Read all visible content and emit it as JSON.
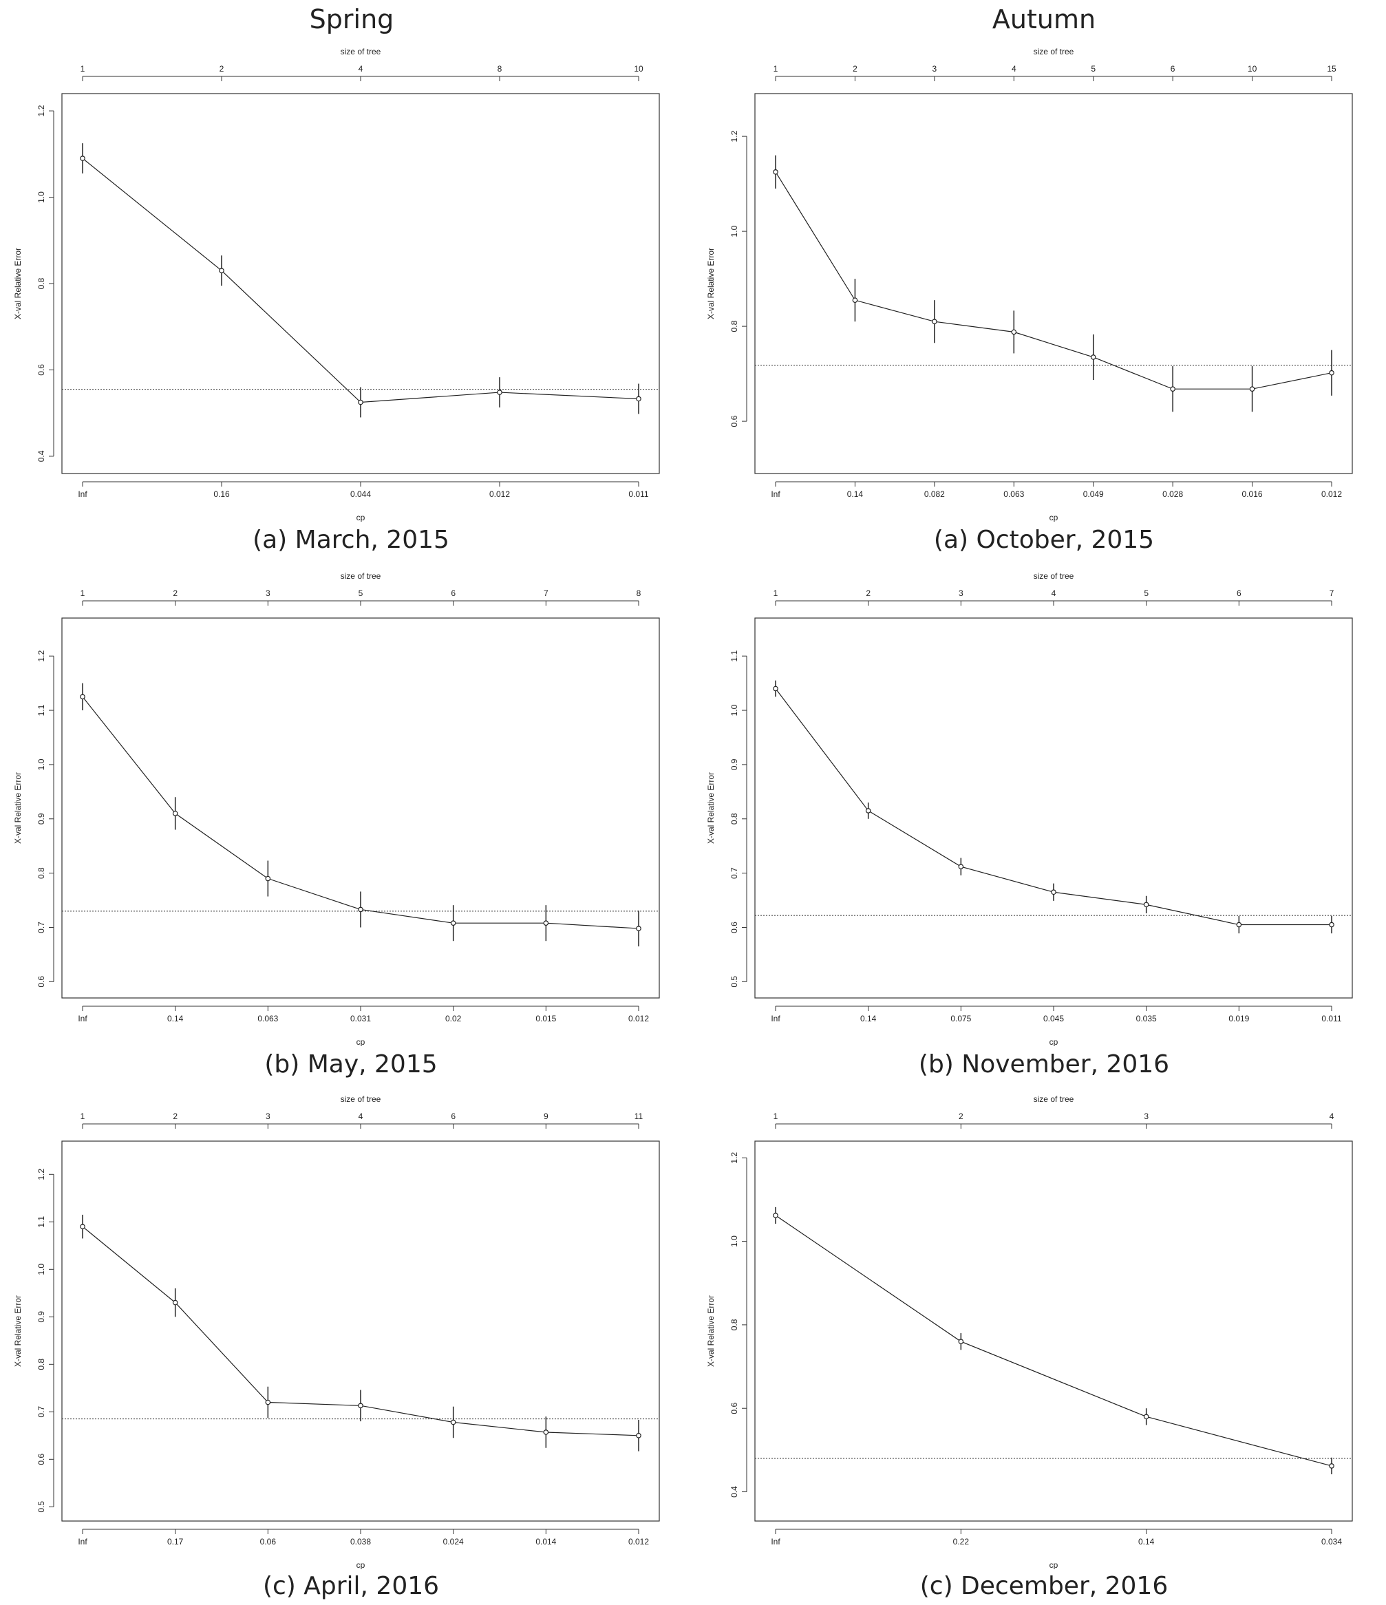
{
  "columns": [
    "Spring",
    "Autumn"
  ],
  "axis_labels": {
    "top": "size of tree",
    "bottom": "cp",
    "left": "X-val Relative Error"
  },
  "chart_data": [
    {
      "type": "line",
      "caption": "(a) March, 2015",
      "column": "Spring",
      "xlabel": "cp",
      "ylabel": "X-val Relative Error",
      "top_label": "size of tree",
      "cp_ticks": [
        "Inf",
        "0.16",
        "0.044",
        "0.012",
        "0.011"
      ],
      "size_ticks": [
        "1",
        "2",
        "4",
        "8",
        "10"
      ],
      "y_ticks": [
        0.4,
        0.6,
        0.8,
        1.0,
        1.2
      ],
      "ylim": [
        0.36,
        1.24
      ],
      "values": [
        1.09,
        0.83,
        0.525,
        0.548,
        0.533
      ],
      "error": [
        0.035,
        0.035,
        0.035,
        0.035,
        0.035
      ],
      "hline": 0.555
    },
    {
      "type": "line",
      "caption": "(a) October, 2015",
      "column": "Autumn",
      "xlabel": "cp",
      "ylabel": "X-val Relative Error",
      "top_label": "size of tree",
      "cp_ticks": [
        "Inf",
        "0.14",
        "0.082",
        "0.063",
        "0.049",
        "0.028",
        "0.016",
        "0.012"
      ],
      "size_ticks": [
        "1",
        "2",
        "3",
        "4",
        "5",
        "6",
        "10",
        "15"
      ],
      "y_ticks": [
        0.6,
        0.8,
        1.0,
        1.2
      ],
      "ylim": [
        0.49,
        1.29
      ],
      "values": [
        1.125,
        0.855,
        0.81,
        0.788,
        0.735,
        0.668,
        0.668,
        0.702
      ],
      "error": [
        0.035,
        0.045,
        0.045,
        0.045,
        0.048,
        0.048,
        0.048,
        0.048
      ],
      "hline": 0.718
    },
    {
      "type": "line",
      "caption": "(b) May, 2015",
      "column": "Spring",
      "xlabel": "cp",
      "ylabel": "X-val Relative Error",
      "top_label": "size of tree",
      "cp_ticks": [
        "Inf",
        "0.14",
        "0.063",
        "0.031",
        "0.02",
        "0.015",
        "0.012"
      ],
      "size_ticks": [
        "1",
        "2",
        "3",
        "5",
        "6",
        "7",
        "8"
      ],
      "y_ticks": [
        0.6,
        0.7,
        0.8,
        0.9,
        1.0,
        1.1,
        1.2
      ],
      "ylim": [
        0.57,
        1.27
      ],
      "values": [
        1.125,
        0.91,
        0.79,
        0.733,
        0.708,
        0.708,
        0.698
      ],
      "error": [
        0.025,
        0.03,
        0.033,
        0.033,
        0.033,
        0.033,
        0.033
      ],
      "hline": 0.73
    },
    {
      "type": "line",
      "caption": "(b) November, 2016",
      "column": "Autumn",
      "xlabel": "cp",
      "ylabel": "X-val Relative Error",
      "top_label": "size of tree",
      "cp_ticks": [
        "Inf",
        "0.14",
        "0.075",
        "0.045",
        "0.035",
        "0.019",
        "0.011"
      ],
      "size_ticks": [
        "1",
        "2",
        "3",
        "4",
        "5",
        "6",
        "7"
      ],
      "y_ticks": [
        0.5,
        0.6,
        0.7,
        0.8,
        0.9,
        1.0,
        1.1
      ],
      "ylim": [
        0.47,
        1.17
      ],
      "values": [
        1.04,
        0.815,
        0.712,
        0.665,
        0.642,
        0.605,
        0.605
      ],
      "error": [
        0.015,
        0.015,
        0.016,
        0.016,
        0.016,
        0.016,
        0.016
      ],
      "hline": 0.622
    },
    {
      "type": "line",
      "caption": "(c) April, 2016",
      "column": "Spring",
      "xlabel": "cp",
      "ylabel": "X-val Relative Error",
      "top_label": "size of tree",
      "cp_ticks": [
        "Inf",
        "0.17",
        "0.06",
        "0.038",
        "0.024",
        "0.014",
        "0.012"
      ],
      "size_ticks": [
        "1",
        "2",
        "3",
        "4",
        "6",
        "9",
        "11"
      ],
      "y_ticks": [
        0.5,
        0.6,
        0.7,
        0.8,
        0.9,
        1.0,
        1.1,
        1.2
      ],
      "ylim": [
        0.47,
        1.27
      ],
      "values": [
        1.09,
        0.93,
        0.72,
        0.713,
        0.678,
        0.657,
        0.65
      ],
      "error": [
        0.025,
        0.03,
        0.033,
        0.033,
        0.033,
        0.033,
        0.033
      ],
      "hline": 0.685
    },
    {
      "type": "line",
      "caption": "(c) December, 2016",
      "column": "Autumn",
      "xlabel": "cp",
      "ylabel": "X-val Relative Error",
      "top_label": "size of tree",
      "cp_ticks": [
        "Inf",
        "0.22",
        "0.14",
        "0.034"
      ],
      "size_ticks": [
        "1",
        "2",
        "3",
        "4"
      ],
      "y_ticks": [
        0.4,
        0.6,
        0.8,
        1.0,
        1.2
      ],
      "ylim": [
        0.33,
        1.24
      ],
      "values": [
        1.062,
        0.76,
        0.58,
        0.462
      ],
      "error": [
        0.02,
        0.02,
        0.02,
        0.02
      ],
      "hline": 0.48
    }
  ]
}
